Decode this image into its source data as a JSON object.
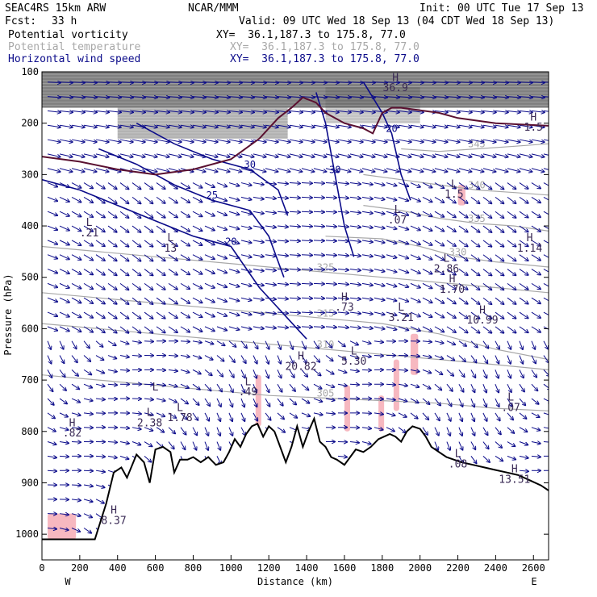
{
  "header": {
    "model": "SEAC4RS 15km ARW",
    "org": "NCAR/MMM",
    "init": "Init: 00 UTC Tue 17 Sep 13",
    "fcst_label": "Fcst:",
    "fcst_value": "33 h",
    "valid": "Valid: 09 UTC Wed 18 Sep 13 (04 CDT Wed 18 Sep 13)"
  },
  "fields": [
    {
      "name": "Potential vorticity",
      "xy": "XY=  36.1,187.3 to 175.8, 77.0",
      "color": "#000000"
    },
    {
      "name": "Potential temperature",
      "xy": "XY=  36.1,187.3 to 175.8, 77.0",
      "color": "#a8a8a8"
    },
    {
      "name": "Horizontal wind speed",
      "xy": "XY=  36.1,187.3 to 175.8, 77.0",
      "color": "#0b0b8a"
    }
  ],
  "chart_data": {
    "type": "cross-section",
    "xlabel": "Distance (km)",
    "ylabel": "Pressure (hPa)",
    "xlim": [
      0,
      2680
    ],
    "ylim": [
      100,
      1050
    ],
    "x_ticks": [
      0,
      200,
      400,
      600,
      800,
      1000,
      1200,
      1400,
      1600,
      1800,
      2000,
      2200,
      2400,
      2600
    ],
    "y_ticks": [
      100,
      200,
      300,
      400,
      500,
      600,
      700,
      800,
      900,
      1000
    ],
    "x_end_labels": {
      "left": "W",
      "right": "E"
    },
    "colors": {
      "pv_shade": "#555555",
      "theta": "#a8a8a8",
      "wind": "#0b0b8a",
      "terrain": "#000000",
      "precip": "#f7b8c0",
      "trop": "#5a1030"
    },
    "terrain": [
      [
        0,
        1010
      ],
      [
        280,
        1010
      ],
      [
        340,
        940
      ],
      [
        380,
        880
      ],
      [
        420,
        870
      ],
      [
        450,
        890
      ],
      [
        500,
        845
      ],
      [
        540,
        860
      ],
      [
        570,
        900
      ],
      [
        600,
        835
      ],
      [
        640,
        830
      ],
      [
        680,
        840
      ],
      [
        700,
        880
      ],
      [
        730,
        855
      ],
      [
        770,
        855
      ],
      [
        800,
        850
      ],
      [
        840,
        860
      ],
      [
        880,
        850
      ],
      [
        920,
        865
      ],
      [
        960,
        860
      ],
      [
        990,
        840
      ],
      [
        1020,
        815
      ],
      [
        1050,
        830
      ],
      [
        1080,
        805
      ],
      [
        1110,
        790
      ],
      [
        1140,
        785
      ],
      [
        1170,
        810
      ],
      [
        1200,
        790
      ],
      [
        1230,
        800
      ],
      [
        1260,
        830
      ],
      [
        1290,
        860
      ],
      [
        1320,
        830
      ],
      [
        1350,
        790
      ],
      [
        1380,
        830
      ],
      [
        1410,
        800
      ],
      [
        1440,
        775
      ],
      [
        1470,
        820
      ],
      [
        1500,
        830
      ],
      [
        1530,
        850
      ],
      [
        1560,
        855
      ],
      [
        1600,
        865
      ],
      [
        1630,
        850
      ],
      [
        1660,
        835
      ],
      [
        1700,
        840
      ],
      [
        1740,
        830
      ],
      [
        1780,
        815
      ],
      [
        1810,
        810
      ],
      [
        1840,
        805
      ],
      [
        1870,
        810
      ],
      [
        1900,
        820
      ],
      [
        1930,
        800
      ],
      [
        1960,
        790
      ],
      [
        2000,
        795
      ],
      [
        2030,
        810
      ],
      [
        2060,
        830
      ],
      [
        2100,
        840
      ],
      [
        2140,
        850
      ],
      [
        2180,
        855
      ],
      [
        2220,
        860
      ],
      [
        2280,
        865
      ],
      [
        2340,
        870
      ],
      [
        2400,
        875
      ],
      [
        2460,
        880
      ],
      [
        2520,
        885
      ],
      [
        2580,
        895
      ],
      [
        2640,
        905
      ],
      [
        2680,
        915
      ]
    ],
    "theta_isentropes": [
      {
        "label": "305",
        "points": [
          [
            0,
            690
          ],
          [
            300,
            700
          ],
          [
            600,
            710
          ],
          [
            900,
            720
          ],
          [
            1200,
            730
          ],
          [
            1500,
            735
          ],
          [
            1800,
            740
          ],
          [
            2100,
            745
          ],
          [
            2400,
            755
          ],
          [
            2680,
            760
          ]
        ]
      },
      {
        "label": "310",
        "points": [
          [
            0,
            590
          ],
          [
            300,
            600
          ],
          [
            600,
            610
          ],
          [
            900,
            620
          ],
          [
            1200,
            630
          ],
          [
            1500,
            640
          ],
          [
            1800,
            650
          ],
          [
            2100,
            660
          ],
          [
            2400,
            670
          ],
          [
            2680,
            680
          ]
        ]
      },
      {
        "label": "315",
        "points": [
          [
            0,
            530
          ],
          [
            300,
            540
          ],
          [
            600,
            550
          ],
          [
            900,
            560
          ],
          [
            1200,
            570
          ],
          [
            1500,
            580
          ],
          [
            1800,
            590
          ],
          [
            2100,
            610
          ],
          [
            2400,
            640
          ],
          [
            2680,
            660
          ]
        ]
      },
      {
        "label": "325",
        "points": [
          [
            0,
            440
          ],
          [
            300,
            450
          ],
          [
            600,
            460
          ],
          [
            900,
            470
          ],
          [
            1200,
            480
          ],
          [
            1500,
            490
          ],
          [
            1800,
            500
          ],
          [
            2100,
            510
          ],
          [
            2400,
            520
          ],
          [
            2680,
            530
          ]
        ]
      },
      {
        "label": "330",
        "points": [
          [
            1500,
            420
          ],
          [
            1800,
            425
          ],
          [
            2000,
            440
          ],
          [
            2200,
            460
          ],
          [
            2400,
            470
          ],
          [
            2680,
            480
          ]
        ]
      },
      {
        "label": "335",
        "points": [
          [
            1700,
            360
          ],
          [
            1900,
            370
          ],
          [
            2100,
            385
          ],
          [
            2300,
            395
          ],
          [
            2500,
            400
          ],
          [
            2680,
            410
          ]
        ]
      },
      {
        "label": "340",
        "points": [
          [
            1700,
            300
          ],
          [
            1900,
            310
          ],
          [
            2100,
            320
          ],
          [
            2300,
            330
          ],
          [
            2500,
            335
          ],
          [
            2680,
            340
          ]
        ]
      },
      {
        "label": "345",
        "points": [
          [
            1900,
            250
          ],
          [
            2100,
            255
          ],
          [
            2300,
            250
          ],
          [
            2500,
            245
          ],
          [
            2680,
            240
          ]
        ]
      }
    ],
    "wind_isotachs": [
      {
        "label": "20",
        "points": [
          [
            0,
            310
          ],
          [
            200,
            330
          ],
          [
            400,
            360
          ],
          [
            600,
            390
          ],
          [
            800,
            420
          ],
          [
            1000,
            440
          ],
          [
            1150,
            520
          ],
          [
            1250,
            560
          ],
          [
            1350,
            600
          ],
          [
            1400,
            620
          ]
        ]
      },
      {
        "label": "25",
        "points": [
          [
            300,
            250
          ],
          [
            500,
            280
          ],
          [
            700,
            320
          ],
          [
            900,
            350
          ],
          [
            1100,
            370
          ],
          [
            1200,
            420
          ],
          [
            1280,
            500
          ]
        ]
      },
      {
        "label": "30",
        "points": [
          [
            500,
            200
          ],
          [
            700,
            240
          ],
          [
            900,
            270
          ],
          [
            1100,
            290
          ],
          [
            1250,
            330
          ],
          [
            1300,
            380
          ]
        ]
      },
      {
        "label": "30",
        "points": [
          [
            1450,
            140
          ],
          [
            1500,
            200
          ],
          [
            1550,
            300
          ],
          [
            1600,
            400
          ],
          [
            1650,
            460
          ]
        ]
      },
      {
        "label": "20",
        "points": [
          [
            1700,
            120
          ],
          [
            1800,
            180
          ],
          [
            1850,
            220
          ],
          [
            1900,
            300
          ],
          [
            1950,
            350
          ]
        ]
      }
    ],
    "tropopause": [
      [
        0,
        265
      ],
      [
        200,
        275
      ],
      [
        400,
        290
      ],
      [
        600,
        300
      ],
      [
        800,
        290
      ],
      [
        1000,
        270
      ],
      [
        1150,
        230
      ],
      [
        1250,
        190
      ],
      [
        1320,
        170
      ],
      [
        1380,
        150
      ],
      [
        1450,
        160
      ],
      [
        1500,
        180
      ],
      [
        1550,
        190
      ],
      [
        1600,
        200
      ],
      [
        1700,
        210
      ],
      [
        1750,
        220
      ],
      [
        1800,
        180
      ],
      [
        1850,
        170
      ],
      [
        1900,
        170
      ],
      [
        2100,
        180
      ],
      [
        2200,
        190
      ],
      [
        2400,
        200
      ],
      [
        2680,
        205
      ]
    ],
    "pv_shading": [
      {
        "x0": 0,
        "x1": 2680,
        "p0": 100,
        "p1": 170,
        "intensity": 0.75
      },
      {
        "x0": 400,
        "x1": 1300,
        "p0": 170,
        "p1": 230,
        "intensity": 0.45
      },
      {
        "x0": 1500,
        "x1": 2000,
        "p0": 130,
        "p1": 200,
        "intensity": 0.35
      }
    ],
    "precip": [
      {
        "x": 30,
        "p0": 960,
        "p1": 1010,
        "w": 150
      },
      {
        "x": 2200,
        "p0": 320,
        "p1": 360,
        "w": 40
      },
      {
        "x": 1130,
        "p0": 690,
        "p1": 790,
        "w": 30
      },
      {
        "x": 1600,
        "p0": 710,
        "p1": 800,
        "w": 30
      },
      {
        "x": 1860,
        "p0": 660,
        "p1": 760,
        "w": 30
      },
      {
        "x": 1950,
        "p0": 610,
        "p1": 690,
        "w": 40
      },
      {
        "x": 1780,
        "p0": 730,
        "p1": 800,
        "w": 30
      }
    ],
    "annotations": [
      {
        "text": "H",
        "x": 1870,
        "p": 118
      },
      {
        "text": "36.9",
        "x": 1870,
        "p": 138
      },
      {
        "text": "H",
        "x": 2600,
        "p": 195
      },
      {
        "text": "1.5",
        "x": 2600,
        "p": 215
      },
      {
        "text": "L",
        "x": 2180,
        "p": 325
      },
      {
        "text": "1.5",
        "x": 2180,
        "p": 345
      },
      {
        "text": "L",
        "x": 1880,
        "p": 375
      },
      {
        "text": ".07",
        "x": 1880,
        "p": 395
      },
      {
        "text": "H",
        "x": 2580,
        "p": 430
      },
      {
        "text": "1.14",
        "x": 2580,
        "p": 450
      },
      {
        "text": "L",
        "x": 2140,
        "p": 470
      },
      {
        "text": "2.86",
        "x": 2140,
        "p": 490
      },
      {
        "text": "H",
        "x": 2170,
        "p": 510
      },
      {
        "text": "1.70",
        "x": 2170,
        "p": 530
      },
      {
        "text": "H",
        "x": 2330,
        "p": 570
      },
      {
        "text": "10.99",
        "x": 2330,
        "p": 590
      },
      {
        "text": "L",
        "x": 1900,
        "p": 565
      },
      {
        "text": "3.21",
        "x": 1900,
        "p": 585
      },
      {
        "text": "H",
        "x": 1600,
        "p": 545
      },
      {
        "text": ".73",
        "x": 1600,
        "p": 565
      },
      {
        "text": "L",
        "x": 1650,
        "p": 650
      },
      {
        "text": "5.30",
        "x": 1650,
        "p": 670
      },
      {
        "text": "H",
        "x": 1370,
        "p": 660
      },
      {
        "text": "20.82",
        "x": 1370,
        "p": 680
      },
      {
        "text": "L",
        "x": 1090,
        "p": 710
      },
      {
        "text": ".49",
        "x": 1090,
        "p": 730
      },
      {
        "text": "L",
        "x": 570,
        "p": 770
      },
      {
        "text": "2.38",
        "x": 570,
        "p": 790
      },
      {
        "text": "L",
        "x": 730,
        "p": 760
      },
      {
        "text": "1.78",
        "x": 730,
        "p": 780
      },
      {
        "text": "H",
        "x": 160,
        "p": 790
      },
      {
        "text": ".82",
        "x": 160,
        "p": 810
      },
      {
        "text": "L",
        "x": 2480,
        "p": 740
      },
      {
        "text": ".07",
        "x": 2480,
        "p": 760
      },
      {
        "text": "L",
        "x": 2200,
        "p": 850
      },
      {
        "text": ".08",
        "x": 2200,
        "p": 870
      },
      {
        "text": "H",
        "x": 2500,
        "p": 880
      },
      {
        "text": "13.51",
        "x": 2500,
        "p": 900
      },
      {
        "text": "H",
        "x": 380,
        "p": 960
      },
      {
        "text": "8.37",
        "x": 380,
        "p": 980
      },
      {
        "text": "L",
        "x": 600,
        "p": 720
      },
      {
        "text": "L",
        "x": 250,
        "p": 400
      },
      {
        "text": ".21",
        "x": 250,
        "p": 420
      },
      {
        "text": "L",
        "x": 680,
        "p": 430
      },
      {
        "text": "13",
        "x": 680,
        "p": 450
      }
    ]
  }
}
